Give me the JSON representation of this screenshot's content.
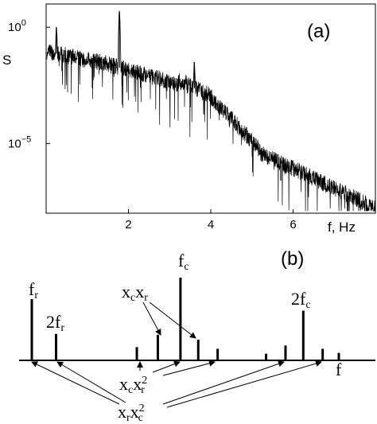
{
  "chart_data": [
    {
      "type": "line",
      "panel_label": "(a)",
      "ylabel": "S",
      "xlabel": "f, Hz",
      "xlim": [
        0,
        8
      ],
      "ylim_log10": [
        -8,
        1
      ],
      "yscale": "log",
      "xticks": [
        {
          "value": 2,
          "label": "2"
        },
        {
          "value": 4,
          "label": "4"
        },
        {
          "value": 6,
          "label": "6"
        }
      ],
      "yticks": [
        {
          "value_log10": 0,
          "base": "10",
          "exp": "0"
        },
        {
          "value_log10": -5,
          "base": "10",
          "exp": "−5"
        }
      ],
      "color": "#000000",
      "peaks": [
        {
          "x": 0.25,
          "log10_y": 0.0
        },
        {
          "x": 1.78,
          "log10_y": 0.7
        },
        {
          "x": 3.4,
          "log10_y": -2.1
        },
        {
          "x": 3.6,
          "log10_y": -1.5
        },
        {
          "x": 5.4,
          "log10_y": -5.8
        },
        {
          "x": 5.7,
          "log10_y": -6.6
        },
        {
          "x": 7.2,
          "log10_y": -7.1
        }
      ]
    },
    {
      "type": "bar",
      "panel_label": "(b)",
      "xlabel": "f",
      "labels": {
        "fr": {
          "base": "f",
          "sub": "r"
        },
        "two_fr": {
          "base": "2f",
          "sub": "r"
        },
        "fc": {
          "base": "f",
          "sub": "c"
        },
        "two_fc": {
          "base": "2f",
          "sub": "c"
        },
        "xcxr": {
          "base1": "x",
          "sub1": "c",
          "base2": "x",
          "sub2": "r"
        },
        "xcx2r": {
          "base1": "x",
          "sub1": "c",
          "base2": "x",
          "sup2": "2",
          "sub2": "r"
        },
        "xrx2c": {
          "base1": "x",
          "sub1": "r",
          "base2": "x",
          "sup2": "2",
          "sub2": "c"
        }
      },
      "lines": [
        {
          "x": 0.0,
          "height": 0.74,
          "role": "fr"
        },
        {
          "x": 0.15,
          "height": 0.32,
          "role": "2fr"
        },
        {
          "x": 0.65,
          "height": 0.16
        },
        {
          "x": 0.78,
          "height": 0.31
        },
        {
          "x": 0.92,
          "height": 1.0,
          "role": "fc"
        },
        {
          "x": 1.03,
          "height": 0.25
        },
        {
          "x": 1.15,
          "height": 0.14
        },
        {
          "x": 1.45,
          "height": 0.08
        },
        {
          "x": 1.57,
          "height": 0.18
        },
        {
          "x": 1.68,
          "height": 0.6,
          "role": "2fc"
        },
        {
          "x": 1.8,
          "height": 0.14
        },
        {
          "x": 1.9,
          "height": 0.09
        }
      ]
    }
  ]
}
